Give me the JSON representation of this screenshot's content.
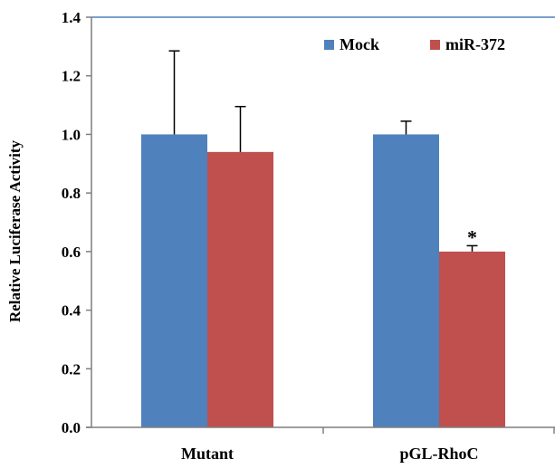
{
  "chart_data": {
    "type": "bar",
    "categories": [
      "Mutant",
      "pGL-RhoC"
    ],
    "series": [
      {
        "name": "Mock",
        "values": [
          1.0,
          1.0
        ],
        "errors": [
          0.285,
          0.045
        ],
        "color": "#4f81bd"
      },
      {
        "name": "miR-372",
        "values": [
          0.94,
          0.6
        ],
        "errors": [
          0.155,
          0.02
        ],
        "color": "#c0504d"
      }
    ],
    "title": "",
    "xlabel": "",
    "ylabel": "Relative Luciferase Activity",
    "ylim": [
      0,
      1.4
    ],
    "yticks": [
      "0.0",
      "0.2",
      "0.4",
      "0.6",
      "0.8",
      "1.0",
      "1.2",
      "1.4"
    ],
    "grid": false,
    "legend_position": "top-right",
    "annotations": [
      {
        "category": "pGL-RhoC",
        "series": "miR-372",
        "text": "*"
      }
    ]
  }
}
